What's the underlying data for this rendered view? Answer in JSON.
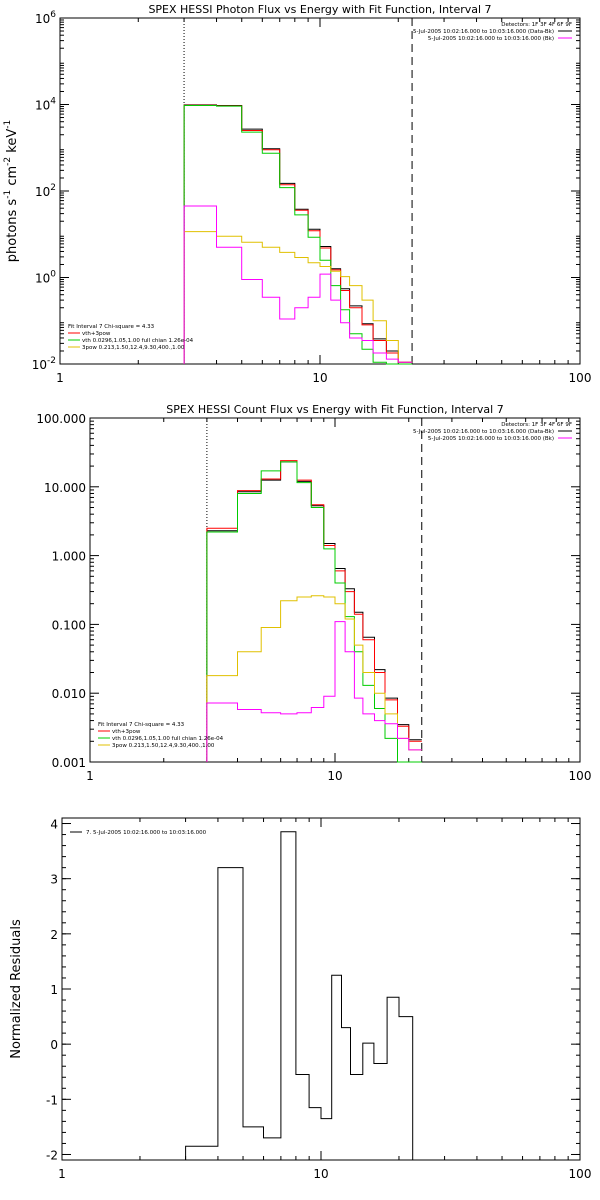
{
  "chart_data": [
    {
      "type": "line",
      "title": "SPEX HESSI Photon Flux vs Energy with Fit Function, Interval 7",
      "xlabel": "",
      "ylabel": "photons s",
      "ylabel_parts": [
        "photons s",
        "-1",
        " cm",
        "-2",
        " keV",
        "-1"
      ],
      "xscale": "log",
      "yscale": "log",
      "xlim": [
        1,
        100
      ],
      "ylim": [
        0.01,
        1000000
      ],
      "x_ticks": [
        {
          "v": 1,
          "label": "1"
        },
        {
          "v": 10,
          "label": "10"
        },
        {
          "v": 100,
          "label": "100"
        }
      ],
      "y_ticks": [
        {
          "v": 0.01,
          "base": "10",
          "exp": "-2"
        },
        {
          "v": 1,
          "base": "10",
          "exp": "0"
        },
        {
          "v": 100,
          "base": "10",
          "exp": "2"
        },
        {
          "v": 10000,
          "base": "10",
          "exp": "4"
        },
        {
          "v": 1000000,
          "base": "10",
          "exp": "6"
        }
      ],
      "vlines": [
        {
          "x": 3.0,
          "style": "dotted"
        },
        {
          "x": 22.6,
          "style": "dashed"
        }
      ],
      "legend_top_right": [
        {
          "text": "Detectors: 1F 3F 4F 6F 9F",
          "color": null
        },
        {
          "text": "5-Jul-2005 10:02:16.000 to 10:03:16.000 (Data-Bk)",
          "color": "#000000"
        },
        {
          "text": "5-Jul-2005 10:02:16.000 to 10:03:16.000 (Bk)",
          "color": "#ff00ff"
        }
      ],
      "legend_bottom_left": [
        {
          "text": "Fit Interval 7   Chi-square = 4.33",
          "color": null
        },
        {
          "text": "vth+3pow",
          "color": "#ff0000"
        },
        {
          "text": "vth 0.0296,1.05,1.00  full chian 1.26e-04",
          "color": "#00cc00"
        },
        {
          "text": "3pow 0.213,1.50,12.4,9.30,400.,1.00",
          "color": "#e0c000"
        }
      ],
      "edges": [
        3.0,
        4.0,
        5.0,
        6.0,
        7.0,
        8.0,
        9.0,
        10.0,
        11.0,
        12.0,
        13.0,
        14.5,
        16.0,
        18.0,
        20.0,
        22.6
      ],
      "series": [
        {
          "name": "Data-Bk",
          "color": "#000000",
          "values": [
            9800,
            9500,
            2700,
            950,
            150,
            38,
            13,
            5.2,
            1.6,
            0.55,
            0.22,
            0.085,
            0.038,
            0.02,
            0.011
          ]
        },
        {
          "name": "vth+3pow",
          "color": "#ff0000",
          "values": [
            9600,
            9300,
            2500,
            900,
            140,
            36,
            12,
            4.8,
            1.5,
            0.5,
            0.2,
            0.08,
            0.035,
            0.018,
            0.011
          ]
        },
        {
          "name": "vth",
          "color": "#00cc00",
          "values": [
            9500,
            9200,
            2300,
            750,
            120,
            28,
            8.5,
            2.5,
            0.65,
            0.18,
            0.05,
            0.022,
            0.011,
            0.01,
            0.01
          ]
        },
        {
          "name": "3pow",
          "color": "#e0c000",
          "values": [
            11.5,
            9.0,
            6.5,
            5.0,
            3.8,
            2.9,
            2.2,
            1.8,
            1.4,
            1.05,
            0.65,
            0.3,
            0.1,
            0.035,
            0.011
          ]
        },
        {
          "name": "Bk",
          "color": "#ff00ff",
          "values": [
            45,
            5.0,
            0.9,
            0.35,
            0.11,
            0.2,
            0.35,
            1.2,
            0.3,
            0.09,
            0.04,
            0.035,
            0.018,
            0.013,
            0.011
          ]
        }
      ]
    },
    {
      "type": "line",
      "title": "SPEX HESSI Count Flux vs Energy with Fit Function, Interval 7",
      "xlabel": "",
      "ylabel": "",
      "xscale": "log",
      "yscale": "log",
      "xlim": [
        1,
        100
      ],
      "ylim": [
        0.001,
        100
      ],
      "x_ticks": [
        {
          "v": 1,
          "label": "1"
        },
        {
          "v": 10,
          "label": "10"
        },
        {
          "v": 100,
          "label": "100"
        }
      ],
      "y_ticks": [
        {
          "v": 0.001,
          "label": "0.001"
        },
        {
          "v": 0.01,
          "label": "0.010"
        },
        {
          "v": 0.1,
          "label": "0.100"
        },
        {
          "v": 1,
          "label": "1.000"
        },
        {
          "v": 10,
          "label": "10.000"
        },
        {
          "v": 100,
          "label": "100.000"
        }
      ],
      "vlines": [
        {
          "x": 3.0,
          "style": "dotted"
        },
        {
          "x": 22.6,
          "style": "dashed"
        }
      ],
      "legend_top_right": [
        {
          "text": "Detectors: 1F 3F 4F 6F 9F",
          "color": null
        },
        {
          "text": "5-Jul-2005 10:02:16.000 to 10:03:16.000 (Data-Bk)",
          "color": "#000000"
        },
        {
          "text": "5-Jul-2005 10:02:16.000 to 10:03:16.000 (Bk)",
          "color": "#ff00ff"
        }
      ],
      "legend_bottom_left": [
        {
          "text": "Fit Interval 7   Chi-square = 4.33",
          "color": null
        },
        {
          "text": "vth+3pow",
          "color": "#ff0000"
        },
        {
          "text": "vth 0.0296,1.05,1.00  full chian 1.26e-04",
          "color": "#00cc00"
        },
        {
          "text": "3pow 0.213,1.50,12.4,9.30,400.,1.00",
          "color": "#e0c000"
        }
      ],
      "edges": [
        3.0,
        4.0,
        5.0,
        6.0,
        7.0,
        8.0,
        9.0,
        10.0,
        11.0,
        12.0,
        13.0,
        14.5,
        16.0,
        18.0,
        20.0,
        22.6
      ],
      "series": [
        {
          "name": "Data-Bk",
          "color": "#000000",
          "values": [
            2.3,
            8.5,
            12.5,
            23,
            12,
            5.3,
            1.5,
            0.65,
            0.33,
            0.15,
            0.065,
            0.022,
            0.0085,
            0.0035,
            0.0021
          ]
        },
        {
          "name": "vth+3pow",
          "color": "#ff0000",
          "values": [
            2.5,
            8.8,
            13,
            24,
            12.5,
            5.5,
            1.4,
            0.6,
            0.3,
            0.14,
            0.06,
            0.02,
            0.008,
            0.0033,
            0.002
          ]
        },
        {
          "name": "vth",
          "color": "#00cc00",
          "values": [
            2.2,
            8.0,
            17,
            23,
            11.5,
            5.0,
            1.25,
            0.4,
            0.13,
            0.04,
            0.013,
            0.006,
            0.0022,
            0.001,
            0.001
          ]
        },
        {
          "name": "3pow",
          "color": "#e0c000",
          "values": [
            0.018,
            0.04,
            0.09,
            0.22,
            0.25,
            0.26,
            0.25,
            0.2,
            0.12,
            0.05,
            0.02,
            0.01,
            0.005,
            0.0022,
            0.0015
          ]
        },
        {
          "name": "Bk",
          "color": "#ff00ff",
          "values": [
            0.0072,
            0.0058,
            0.0052,
            0.005,
            0.0052,
            0.0062,
            0.009,
            0.11,
            0.04,
            0.0085,
            0.005,
            0.004,
            0.0036,
            0.0022,
            0.0015
          ]
        }
      ]
    },
    {
      "type": "line",
      "title": "",
      "xlabel": "",
      "ylabel": "Normalized Residuals",
      "xscale": "log",
      "yscale": "linear",
      "xlim": [
        1,
        100
      ],
      "ylim": [
        -2.1,
        4.1
      ],
      "x_ticks": [
        {
          "v": 1,
          "label": "1"
        },
        {
          "v": 10,
          "label": "10"
        },
        {
          "v": 100,
          "label": "100"
        }
      ],
      "y_ticks": [
        {
          "v": -2,
          "label": "-2"
        },
        {
          "v": -1,
          "label": "-1"
        },
        {
          "v": 0,
          "label": "0"
        },
        {
          "v": 1,
          "label": "1"
        },
        {
          "v": 2,
          "label": "2"
        },
        {
          "v": 3,
          "label": "3"
        },
        {
          "v": 4,
          "label": "4"
        }
      ],
      "legend": [
        {
          "text": "7. 5-Jul-2005 10:02:16.000 to 10:03:16.000",
          "color": "#000000"
        }
      ],
      "edges": [
        3.0,
        4.0,
        5.0,
        6.0,
        7.0,
        8.0,
        9.0,
        10.0,
        11.0,
        12.0,
        13.0,
        14.5,
        16.0,
        18.0,
        20.0,
        22.6
      ],
      "series": [
        {
          "name": "7. 5-Jul-2005 10:02:16.000 to 10:03:16.000",
          "color": "#000000",
          "values": [
            -1.85,
            3.2,
            -1.5,
            -1.7,
            3.85,
            -0.55,
            -1.15,
            -1.35,
            1.25,
            0.3,
            -0.55,
            0.02,
            -0.35,
            0.85,
            0.5
          ]
        }
      ]
    }
  ]
}
